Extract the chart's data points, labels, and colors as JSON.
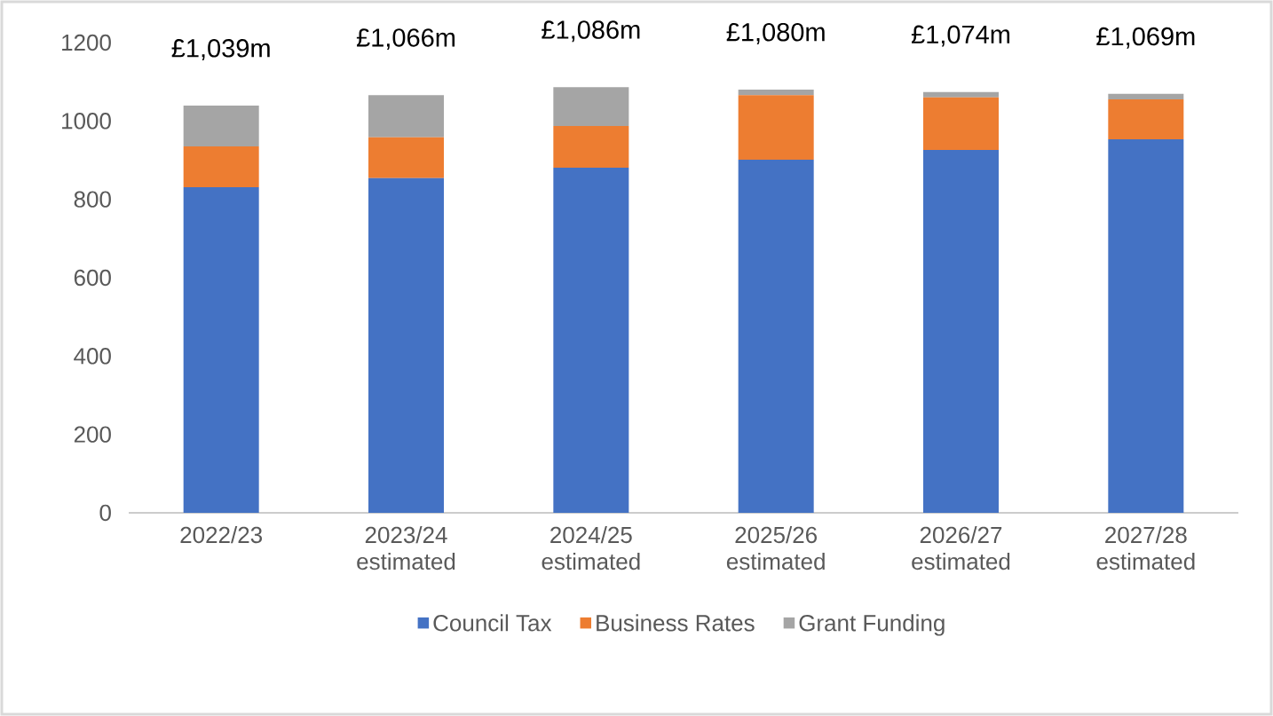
{
  "chart_data": {
    "type": "bar",
    "stacked": true,
    "categories": [
      "2022/23",
      "2023/24 estimated",
      "2024/25 estimated",
      "2025/26 estimated",
      "2026/27 estimated",
      "2027/28 estimated"
    ],
    "series": [
      {
        "name": "Council Tax",
        "color": "#4472c4",
        "values": [
          831,
          854,
          881,
          901,
          926,
          953
        ]
      },
      {
        "name": "Business Rates",
        "color": "#ed7d31",
        "values": [
          104,
          104,
          106,
          165,
          134,
          102
        ]
      },
      {
        "name": "Grant Funding",
        "color": "#a5a5a5",
        "values": [
          104,
          108,
          99,
          14,
          14,
          14
        ]
      }
    ],
    "totals": [
      "£1,039m",
      "£1,066m",
      "£1,086m",
      "£1,080m",
      "£1,074m",
      "£1,069m"
    ],
    "ylim": [
      0,
      1200
    ],
    "yticks": [
      0,
      200,
      400,
      600,
      800,
      1000,
      1200
    ],
    "legend": "bottom"
  }
}
